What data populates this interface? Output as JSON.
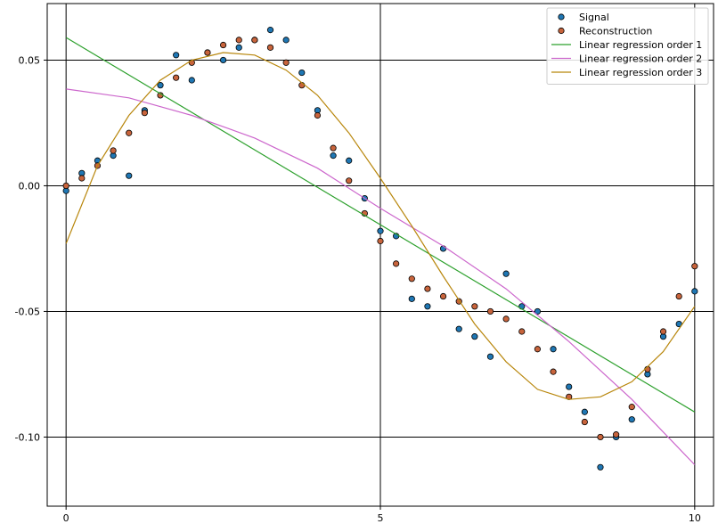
{
  "chart_data": {
    "type": "scatter",
    "title": "",
    "xlabel": "",
    "ylabel": "",
    "xlim": [
      -0.3,
      10.3
    ],
    "ylim": [
      -0.1275,
      0.0725
    ],
    "xticks": [
      0,
      5,
      10
    ],
    "xtick_labels": [
      "0",
      "5",
      "10"
    ],
    "yticks": [
      0.05,
      0.0,
      -0.05,
      -0.1
    ],
    "ytick_labels": [
      "0.05",
      "0.00",
      "-0.05",
      "-0.10"
    ],
    "grid": true,
    "legend_position": "top-right",
    "series": [
      {
        "name": "Signal",
        "kind": "scatter",
        "color": "#1f77b4",
        "edgecolor": "#000000",
        "x": [
          0.0,
          0.25,
          0.5,
          0.75,
          1.0,
          1.25,
          1.5,
          1.75,
          2.0,
          2.25,
          2.5,
          2.75,
          3.0,
          3.25,
          3.5,
          3.75,
          4.0,
          4.25,
          4.5,
          4.75,
          5.0,
          5.25,
          5.5,
          5.75,
          6.0,
          6.25,
          6.5,
          6.75,
          7.0,
          7.25,
          7.5,
          7.75,
          8.0,
          8.25,
          8.5,
          8.75,
          9.0,
          9.25,
          9.5,
          9.75,
          10.0
        ],
        "y": [
          -0.002,
          0.005,
          0.01,
          0.012,
          0.004,
          0.03,
          0.04,
          0.052,
          0.042,
          0.053,
          0.05,
          0.055,
          0.058,
          0.062,
          0.058,
          0.045,
          0.03,
          0.012,
          0.01,
          -0.005,
          -0.018,
          -0.02,
          -0.045,
          -0.048,
          -0.025,
          -0.057,
          -0.06,
          -0.068,
          -0.035,
          -0.048,
          -0.05,
          -0.065,
          -0.08,
          -0.09,
          -0.112,
          -0.1,
          -0.093,
          -0.075,
          -0.06,
          -0.055,
          -0.042
        ]
      },
      {
        "name": "Reconstruction",
        "kind": "scatter",
        "color": "#c8643c",
        "edgecolor": "#000000",
        "x": [
          0.0,
          0.25,
          0.5,
          0.75,
          1.0,
          1.25,
          1.5,
          1.75,
          2.0,
          2.25,
          2.5,
          2.75,
          3.0,
          3.25,
          3.5,
          3.75,
          4.0,
          4.25,
          4.5,
          4.75,
          5.0,
          5.25,
          5.5,
          5.75,
          6.0,
          6.25,
          6.5,
          6.75,
          7.0,
          7.25,
          7.5,
          7.75,
          8.0,
          8.25,
          8.5,
          8.75,
          9.0,
          9.25,
          9.5,
          9.75,
          10.0
        ],
        "y": [
          0.0,
          0.003,
          0.008,
          0.014,
          0.021,
          0.029,
          0.036,
          0.043,
          0.049,
          0.053,
          0.056,
          0.058,
          0.058,
          0.055,
          0.049,
          0.04,
          0.028,
          0.015,
          0.002,
          -0.011,
          -0.022,
          -0.031,
          -0.037,
          -0.041,
          -0.044,
          -0.046,
          -0.048,
          -0.05,
          -0.053,
          -0.058,
          -0.065,
          -0.074,
          -0.084,
          -0.094,
          -0.1,
          -0.099,
          -0.088,
          -0.073,
          -0.058,
          -0.044,
          -0.032
        ]
      },
      {
        "name": "Linear regression order 1",
        "kind": "line",
        "color": "#2ca02c",
        "x": [
          0.0,
          10.0
        ],
        "y": [
          0.059,
          -0.09
        ]
      },
      {
        "name": "Linear regression order 2",
        "kind": "line",
        "color": "#cc66cc",
        "x": [
          0.0,
          1.0,
          2.0,
          3.0,
          4.0,
          5.0,
          6.0,
          7.0,
          8.0,
          9.0,
          10.0
        ],
        "y": [
          0.0385,
          0.035,
          0.028,
          0.019,
          0.007,
          -0.009,
          -0.024,
          -0.041,
          -0.062,
          -0.085,
          -0.111
        ]
      },
      {
        "name": "Linear regression order 3",
        "kind": "line",
        "color": "#b8860b",
        "x": [
          0.0,
          0.5,
          1.0,
          1.5,
          2.0,
          2.5,
          3.0,
          3.5,
          4.0,
          4.5,
          5.0,
          5.5,
          6.0,
          6.5,
          7.0,
          7.5,
          8.0,
          8.5,
          9.0,
          9.5,
          10.0
        ],
        "y": [
          -0.023,
          0.008,
          0.028,
          0.042,
          0.05,
          0.053,
          0.052,
          0.046,
          0.036,
          0.021,
          0.003,
          -0.016,
          -0.036,
          -0.055,
          -0.07,
          -0.081,
          -0.085,
          -0.084,
          -0.078,
          -0.066,
          -0.048
        ]
      }
    ]
  }
}
